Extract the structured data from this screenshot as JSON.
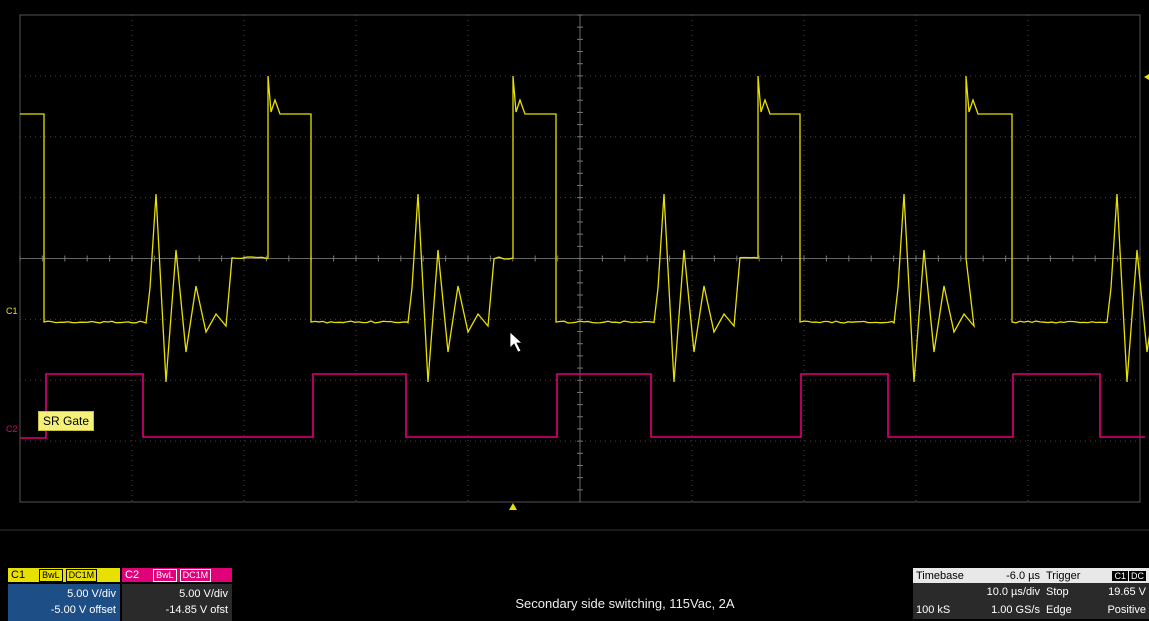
{
  "screen": {
    "ch1_marker": "C1",
    "ch2_marker": "C2",
    "sr_gate_label": "SR Gate"
  },
  "ch1": {
    "name": "C1",
    "bwl": "BwL",
    "coupling": "DC1M",
    "vdiv": "5.00 V/div",
    "offset": "-5.00 V offset",
    "color": "#e8e000"
  },
  "ch2": {
    "name": "C2",
    "bwl": "BwL",
    "coupling": "DC1M",
    "vdiv": "5.00 V/div",
    "offset": "-14.85 V ofst",
    "color": "#e0007a"
  },
  "caption": "Secondary side switching, 115Vac, 2A",
  "timebase": {
    "title": "Timebase",
    "delay": "-6.0 µs",
    "tdiv": "10.0 µs/div",
    "samples": "100 kS",
    "rate": "1.00 GS/s"
  },
  "trigger": {
    "title": "Trigger",
    "source_badge": "C1",
    "coupling_badge": "DC",
    "mode": "Stop",
    "level": "19.65 V",
    "type": "Edge",
    "slope": "Positive"
  }
}
